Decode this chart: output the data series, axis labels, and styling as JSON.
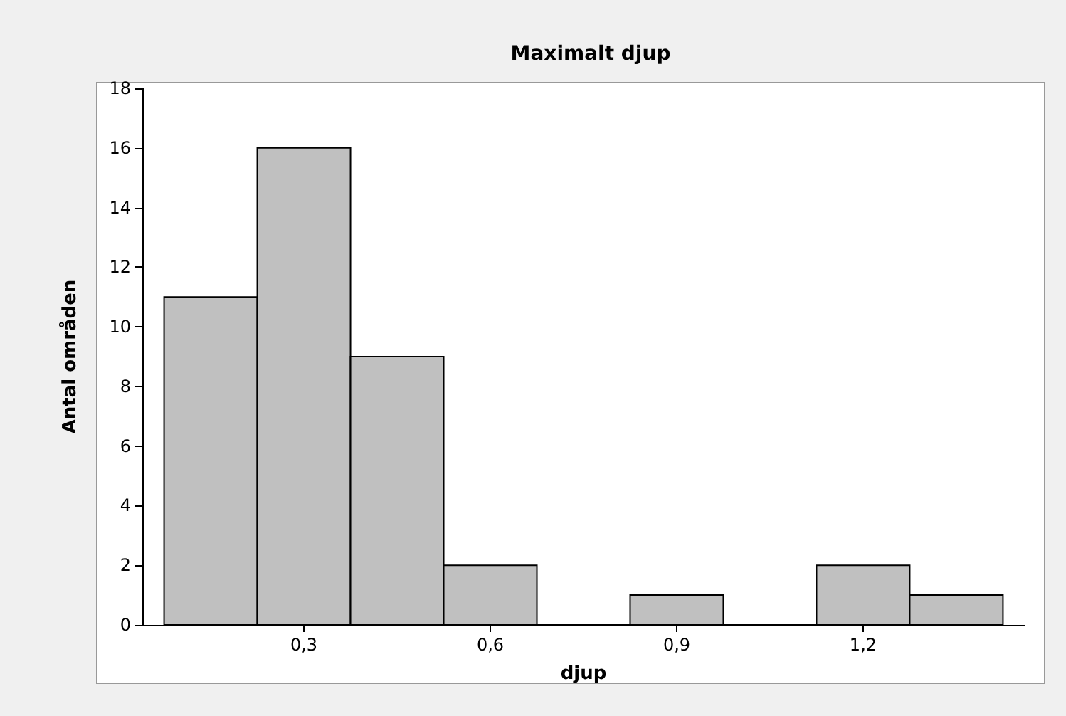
{
  "chart_data": {
    "type": "histogram",
    "title": "Maximalt djup",
    "xlabel": "djup",
    "ylabel": "Antal områden",
    "bins": [
      0.075,
      0.225,
      0.375,
      0.525,
      0.675,
      0.825,
      0.975,
      1.125,
      1.275,
      1.425
    ],
    "values": [
      11,
      16,
      9,
      2,
      0,
      1,
      0,
      2,
      1
    ],
    "color": "#c0c0c0",
    "xlim": [
      0.04,
      1.46
    ],
    "xticks": [
      {
        "value": 0.3,
        "label": "0,3"
      },
      {
        "value": 0.6,
        "label": "0,6"
      },
      {
        "value": 0.9,
        "label": "0,9"
      },
      {
        "value": 1.2,
        "label": "1,2"
      }
    ],
    "ylim": [
      0,
      18
    ],
    "yticks": [
      0,
      2,
      4,
      6,
      8,
      10,
      12,
      14,
      16,
      18
    ],
    "grid": false
  }
}
